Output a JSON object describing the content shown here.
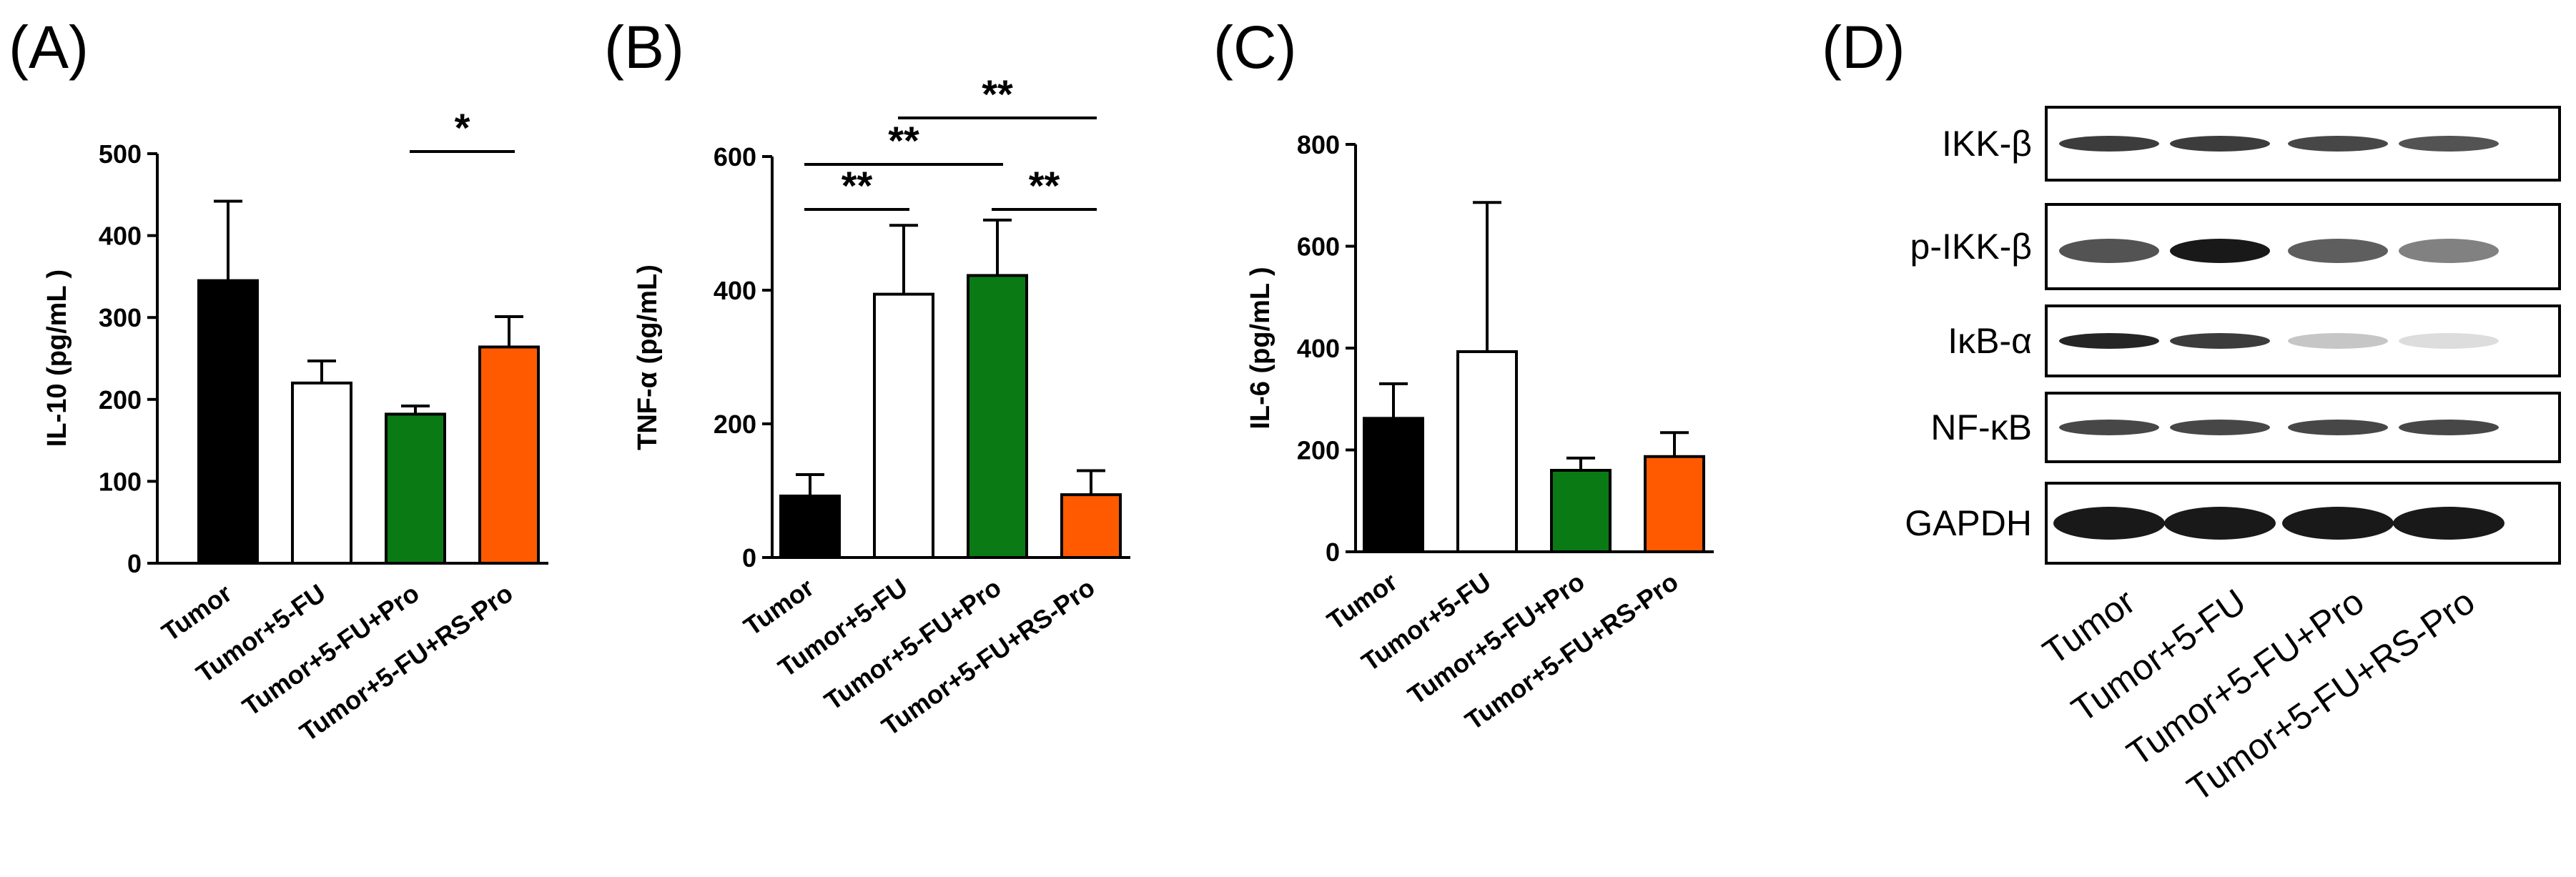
{
  "colors": {
    "Tumor": "#000000",
    "Tumor+5-FU": "#ffffff",
    "Tumor+5-FU+Pro": "#0a7a14",
    "Tumor+5-FU+RS-Pro": "#ff5a00"
  },
  "chart_data": [
    {
      "panel": "(A)",
      "type": "bar",
      "ylabel": "IL-10 (pg/mL )",
      "ylim": [
        0,
        500
      ],
      "yticks": [
        "0",
        "100",
        "200",
        "300",
        "400",
        "500"
      ],
      "categories": [
        "Tumor",
        "Tumor+5-FU",
        "Tumor+5-FU+Pro",
        "Tumor+5-FU+RS-Pro"
      ],
      "values": [
        345,
        220,
        182,
        264
      ],
      "errors": [
        97,
        27,
        10,
        37
      ],
      "significance": [
        {
          "from": 2,
          "to": 3,
          "label": "*"
        }
      ]
    },
    {
      "panel": "(B)",
      "type": "bar",
      "ylabel": "TNF-α (pg/mL)",
      "ylim": [
        0,
        600
      ],
      "yticks": [
        "0",
        "200",
        "400",
        "600"
      ],
      "categories": [
        "Tumor",
        "Tumor+5-FU",
        "Tumor+5-FU+Pro",
        "Tumor+5-FU+RS-Pro"
      ],
      "values": [
        92,
        394,
        422,
        94
      ],
      "errors": [
        32,
        103,
        83,
        36
      ],
      "significance": [
        {
          "from": 0,
          "to": 1,
          "label": "**"
        },
        {
          "from": 0,
          "to": 2,
          "label": "**"
        },
        {
          "from": 1,
          "to": 3,
          "label": "**"
        },
        {
          "from": 2,
          "to": 3,
          "label": "**"
        }
      ]
    },
    {
      "panel": "(C)",
      "type": "bar",
      "ylabel": "IL-6 (pg/mL )",
      "ylim": [
        0,
        800
      ],
      "yticks": [
        "0",
        "200",
        "400",
        "600",
        "800"
      ],
      "categories": [
        "Tumor",
        "Tumor+5-FU",
        "Tumor+5-FU+Pro",
        "Tumor+5-FU+RS-Pro"
      ],
      "values": [
        262,
        393,
        160,
        187
      ],
      "errors": [
        68,
        293,
        24,
        47
      ],
      "significance": []
    }
  ],
  "blot": {
    "panel": "(D)",
    "rows": [
      "IKK-β",
      "p-IKK-β",
      "IκB-α",
      "NF-κB",
      "GAPDH"
    ],
    "categories": [
      "Tumor",
      "Tumor+5-FU",
      "Tumor+5-FU+Pro",
      "Tumor+5-FU+RS-Pro"
    ],
    "intensities": [
      [
        0.85,
        0.85,
        0.8,
        0.75
      ],
      [
        0.75,
        1.0,
        0.7,
        0.55
      ],
      [
        0.95,
        0.85,
        0.25,
        0.15
      ],
      [
        0.8,
        0.8,
        0.8,
        0.8
      ],
      [
        1.0,
        1.0,
        1.0,
        1.0
      ]
    ]
  }
}
